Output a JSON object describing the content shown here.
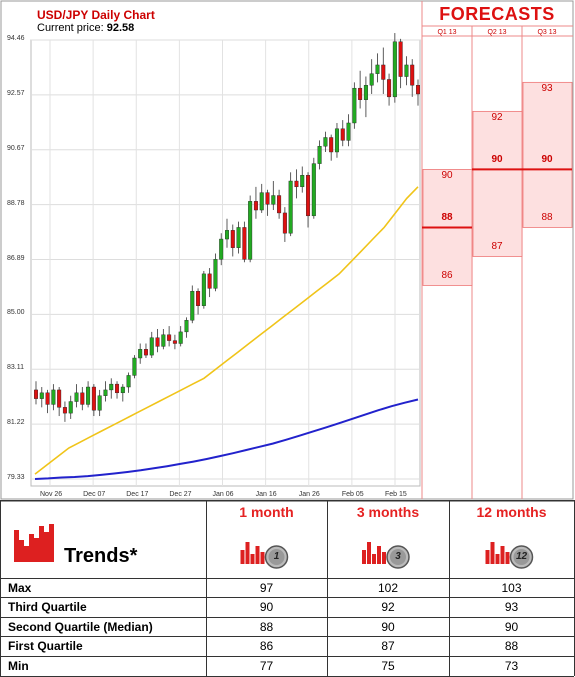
{
  "header": {
    "title": "USD/JPY Daily Chart",
    "price_label": "Current price:",
    "price_value": "92.58"
  },
  "forecast_header": {
    "title": "FORECASTS",
    "quarters": [
      "Q1 13",
      "Q2 13",
      "Q3 13"
    ]
  },
  "forecast_values": [
    {
      "quarter": "Q1 13",
      "upper": 90,
      "median": 88,
      "lower": 86
    },
    {
      "quarter": "Q2 13",
      "upper": 92,
      "median": 90,
      "lower": 87
    },
    {
      "quarter": "Q3 13",
      "upper": 93,
      "median": 90,
      "lower": 88
    }
  ],
  "chart_data": {
    "type": "line",
    "title": "USD/JPY Daily Chart",
    "y_ticks": [
      "94.46",
      "92.57",
      "90.67",
      "88.78",
      "86.89",
      "85.00",
      "83.11",
      "81.22",
      "79.33"
    ],
    "x_ticks": [
      "Nov 26",
      "Dec 07",
      "Dec 17",
      "Dec 27",
      "Jan 06",
      "Jan 16",
      "Jan 26",
      "Feb 05",
      "Feb 15"
    ],
    "ylim": [
      79.33,
      94.46
    ],
    "grid": true,
    "candles": [
      {
        "o": 82.4,
        "c": 82.1,
        "h": 82.7,
        "l": 81.9
      },
      {
        "o": 82.1,
        "c": 82.3,
        "h": 82.5,
        "l": 81.8
      },
      {
        "o": 82.3,
        "c": 81.9,
        "h": 82.4,
        "l": 81.6
      },
      {
        "o": 81.9,
        "c": 82.4,
        "h": 82.6,
        "l": 81.7
      },
      {
        "o": 82.4,
        "c": 81.8,
        "h": 82.5,
        "l": 81.5
      },
      {
        "o": 81.8,
        "c": 81.6,
        "h": 82.0,
        "l": 81.3
      },
      {
        "o": 81.6,
        "c": 82.0,
        "h": 82.2,
        "l": 81.4
      },
      {
        "o": 82.0,
        "c": 82.3,
        "h": 82.6,
        "l": 81.8
      },
      {
        "o": 82.3,
        "c": 81.9,
        "h": 82.5,
        "l": 81.7
      },
      {
        "o": 81.9,
        "c": 82.5,
        "h": 82.7,
        "l": 81.8
      },
      {
        "o": 82.5,
        "c": 81.7,
        "h": 82.6,
        "l": 81.5
      },
      {
        "o": 81.7,
        "c": 82.2,
        "h": 82.4,
        "l": 81.5
      },
      {
        "o": 82.2,
        "c": 82.4,
        "h": 82.7,
        "l": 82.0
      },
      {
        "o": 82.4,
        "c": 82.6,
        "h": 82.8,
        "l": 82.1
      },
      {
        "o": 82.6,
        "c": 82.3,
        "h": 82.7,
        "l": 82.1
      },
      {
        "o": 82.3,
        "c": 82.5,
        "h": 82.6,
        "l": 82.0
      },
      {
        "o": 82.5,
        "c": 82.9,
        "h": 83.0,
        "l": 82.3
      },
      {
        "o": 82.9,
        "c": 83.5,
        "h": 83.6,
        "l": 82.8
      },
      {
        "o": 83.5,
        "c": 83.8,
        "h": 84.0,
        "l": 83.3
      },
      {
        "o": 83.8,
        "c": 83.6,
        "h": 84.0,
        "l": 83.5
      },
      {
        "o": 83.6,
        "c": 84.2,
        "h": 84.4,
        "l": 83.5
      },
      {
        "o": 84.2,
        "c": 83.9,
        "h": 84.5,
        "l": 83.7
      },
      {
        "o": 83.9,
        "c": 84.3,
        "h": 84.5,
        "l": 83.8
      },
      {
        "o": 84.3,
        "c": 84.1,
        "h": 84.6,
        "l": 83.9
      },
      {
        "o": 84.1,
        "c": 84.0,
        "h": 84.3,
        "l": 83.8
      },
      {
        "o": 84.0,
        "c": 84.4,
        "h": 84.6,
        "l": 83.9
      },
      {
        "o": 84.4,
        "c": 84.8,
        "h": 84.9,
        "l": 84.2
      },
      {
        "o": 84.8,
        "c": 85.8,
        "h": 86.0,
        "l": 84.7
      },
      {
        "o": 85.8,
        "c": 85.3,
        "h": 85.9,
        "l": 85.0
      },
      {
        "o": 85.3,
        "c": 86.4,
        "h": 86.5,
        "l": 85.2
      },
      {
        "o": 86.4,
        "c": 85.9,
        "h": 86.6,
        "l": 85.6
      },
      {
        "o": 85.9,
        "c": 86.9,
        "h": 87.1,
        "l": 85.8
      },
      {
        "o": 86.9,
        "c": 87.6,
        "h": 87.8,
        "l": 86.7
      },
      {
        "o": 87.6,
        "c": 87.9,
        "h": 88.3,
        "l": 87.3
      },
      {
        "o": 87.9,
        "c": 87.3,
        "h": 88.1,
        "l": 87.0
      },
      {
        "o": 87.3,
        "c": 88.0,
        "h": 88.2,
        "l": 87.1
      },
      {
        "o": 88.0,
        "c": 86.9,
        "h": 88.2,
        "l": 86.8
      },
      {
        "o": 86.9,
        "c": 88.9,
        "h": 89.1,
        "l": 86.8
      },
      {
        "o": 88.9,
        "c": 88.6,
        "h": 89.4,
        "l": 88.3
      },
      {
        "o": 88.6,
        "c": 89.2,
        "h": 89.5,
        "l": 88.5
      },
      {
        "o": 89.2,
        "c": 88.8,
        "h": 89.3,
        "l": 88.4
      },
      {
        "o": 88.8,
        "c": 89.1,
        "h": 89.6,
        "l": 88.6
      },
      {
        "o": 89.1,
        "c": 88.5,
        "h": 89.3,
        "l": 88.3
      },
      {
        "o": 88.5,
        "c": 87.8,
        "h": 88.7,
        "l": 87.5
      },
      {
        "o": 87.8,
        "c": 89.6,
        "h": 89.9,
        "l": 87.7
      },
      {
        "o": 89.6,
        "c": 89.4,
        "h": 90.0,
        "l": 89.0
      },
      {
        "o": 89.4,
        "c": 89.8,
        "h": 90.1,
        "l": 89.2
      },
      {
        "o": 89.8,
        "c": 88.4,
        "h": 89.9,
        "l": 88.0
      },
      {
        "o": 88.4,
        "c": 90.2,
        "h": 90.4,
        "l": 88.3
      },
      {
        "o": 90.2,
        "c": 90.8,
        "h": 91.0,
        "l": 90.0
      },
      {
        "o": 90.8,
        "c": 91.1,
        "h": 91.3,
        "l": 90.6
      },
      {
        "o": 91.1,
        "c": 90.6,
        "h": 91.2,
        "l": 90.3
      },
      {
        "o": 90.6,
        "c": 91.4,
        "h": 91.6,
        "l": 90.4
      },
      {
        "o": 91.4,
        "c": 91.0,
        "h": 91.7,
        "l": 90.8
      },
      {
        "o": 91.0,
        "c": 91.6,
        "h": 91.9,
        "l": 90.8
      },
      {
        "o": 91.6,
        "c": 92.8,
        "h": 93.0,
        "l": 91.4
      },
      {
        "o": 92.8,
        "c": 92.4,
        "h": 93.4,
        "l": 92.1
      },
      {
        "o": 92.4,
        "c": 92.9,
        "h": 93.2,
        "l": 91.8
      },
      {
        "o": 92.9,
        "c": 93.3,
        "h": 93.8,
        "l": 92.6
      },
      {
        "o": 93.3,
        "c": 93.6,
        "h": 94.0,
        "l": 93.0
      },
      {
        "o": 93.6,
        "c": 93.1,
        "h": 94.2,
        "l": 92.6
      },
      {
        "o": 93.1,
        "c": 92.5,
        "h": 93.3,
        "l": 92.2
      },
      {
        "o": 92.5,
        "c": 94.4,
        "h": 94.7,
        "l": 92.3
      },
      {
        "o": 94.4,
        "c": 93.2,
        "h": 94.5,
        "l": 92.8
      },
      {
        "o": 93.2,
        "c": 93.6,
        "h": 93.9,
        "l": 92.9
      },
      {
        "o": 93.6,
        "c": 92.9,
        "h": 93.8,
        "l": 92.5
      },
      {
        "o": 92.9,
        "c": 92.6,
        "h": 93.1,
        "l": 92.2
      }
    ],
    "series": [
      {
        "values": [
          79.5,
          79.8,
          80.1,
          80.4,
          80.6,
          80.8,
          81.0,
          81.2,
          81.4,
          81.6,
          81.8,
          82.0,
          82.2,
          82.4,
          82.6,
          82.8,
          83.1,
          83.4,
          83.7,
          84.0,
          84.3,
          84.6,
          84.9,
          85.2,
          85.5,
          85.8,
          86.1,
          86.4,
          86.8,
          87.2,
          87.6,
          88.0,
          88.5,
          89.0,
          89.4
        ]
      },
      {
        "values": [
          79.33,
          79.35,
          79.38,
          79.4,
          79.43,
          79.47,
          79.52,
          79.57,
          79.63,
          79.7,
          79.77,
          79.85,
          79.93,
          80.02,
          80.12,
          80.22,
          80.33,
          80.44,
          80.55,
          80.68,
          80.82,
          80.96,
          81.1,
          81.25,
          81.4,
          81.55,
          81.7,
          81.84,
          81.96,
          82.07
        ]
      }
    ]
  },
  "trends": {
    "label": "Trends*",
    "columns": [
      {
        "title": "1 month",
        "badge": "1"
      },
      {
        "title": "3 months",
        "badge": "3"
      },
      {
        "title": "12 months",
        "badge": "12"
      }
    ],
    "rows": [
      {
        "label": "Max",
        "values": [
          "97",
          "102",
          "103"
        ]
      },
      {
        "label": "Third Quartile",
        "values": [
          "90",
          "92",
          "93"
        ]
      },
      {
        "label": "Second Quartile (Median)",
        "values": [
          "88",
          "90",
          "90"
        ]
      },
      {
        "label": "First Quartile",
        "values": [
          "86",
          "87",
          "88"
        ]
      },
      {
        "label": "Min",
        "values": [
          "77",
          "75",
          "73"
        ]
      }
    ]
  },
  "colors": {
    "up": "#22aa22",
    "down": "#dd1111",
    "ma_short": "#f0c419",
    "ma_long": "#2222cc",
    "forecast_red": "#dd1111",
    "forecast_fill": "#fde0e0"
  }
}
